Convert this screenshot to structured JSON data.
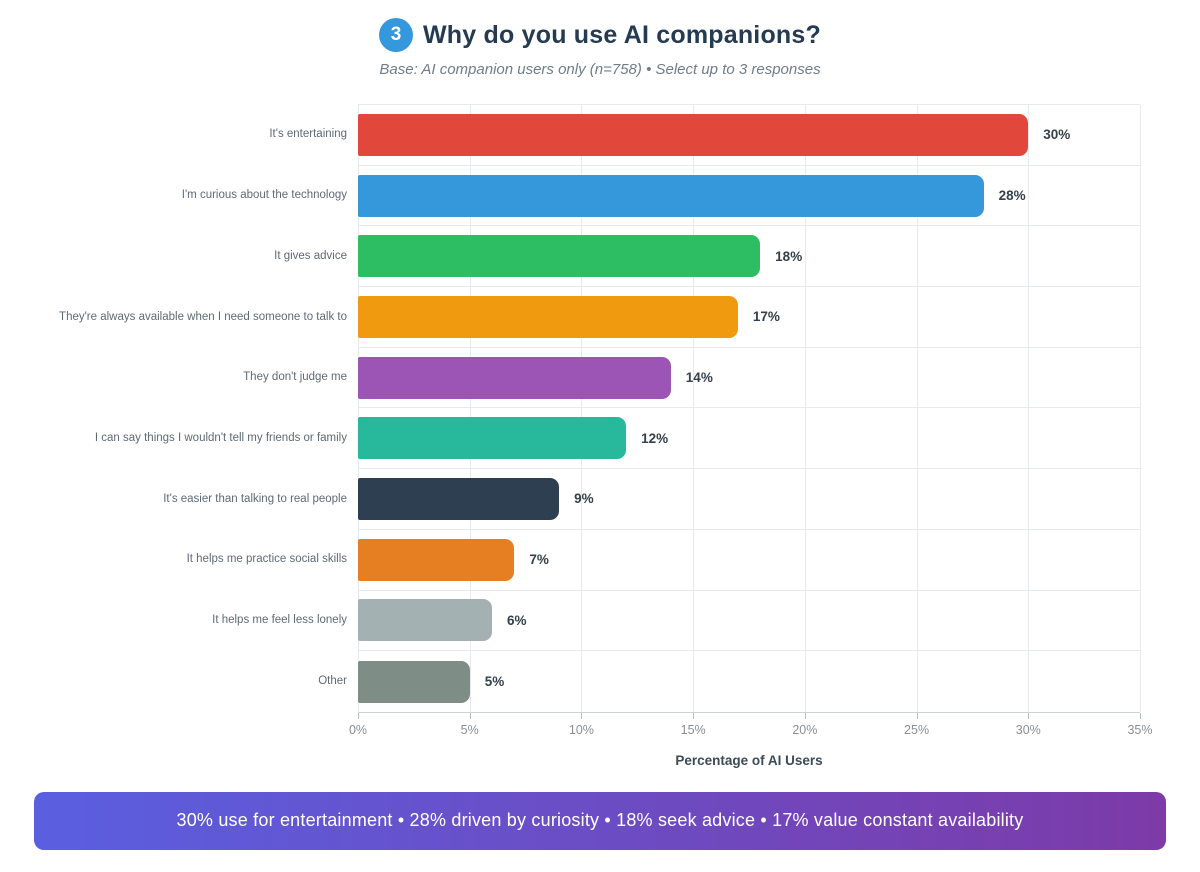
{
  "header": {
    "badge": "3",
    "badge_color": "#3598dc",
    "title": "Why do you use AI companions?",
    "subtitle": "Base: AI companion users only (n=758) • Select up to 3 responses"
  },
  "chart_data": {
    "type": "bar",
    "orientation": "horizontal",
    "categories": [
      "It's entertaining",
      "I'm curious about the technology",
      "It gives advice",
      "They're always available when I need someone to talk to",
      "They don't judge me",
      "I can say things I wouldn't tell my friends or family",
      "It's easier than talking to real people",
      "It helps me practice social skills",
      "It helps me feel less lonely",
      "Other"
    ],
    "values": [
      30,
      28,
      18,
      17,
      14,
      12,
      9,
      7,
      6,
      5
    ],
    "value_labels": [
      "30%",
      "28%",
      "18%",
      "17%",
      "14%",
      "12%",
      "9%",
      "7%",
      "6%",
      "5%"
    ],
    "bar_colors": [
      "#e2473c",
      "#3598db",
      "#2dbd62",
      "#f09a0f",
      "#9c55b4",
      "#28b89b",
      "#2e3f51",
      "#e67e22",
      "#a3b1b2",
      "#7e8d86"
    ],
    "xlabel": "Percentage of AI Users",
    "xlim": [
      0,
      35
    ],
    "xticks": [
      "0%",
      "5%",
      "10%",
      "15%",
      "20%",
      "25%",
      "30%",
      "35%"
    ],
    "grid": true,
    "legend": false
  },
  "footer": {
    "text": "30% use for entertainment • 28% driven by curiosity • 18% seek advice • 17% value constant availability",
    "gradient_from": "#5a5fe0",
    "gradient_to": "#7d3aa8",
    "text_color": "#ffffff"
  }
}
